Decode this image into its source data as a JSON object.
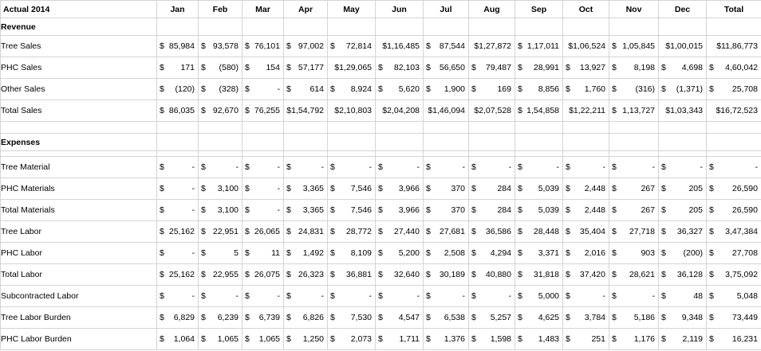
{
  "sheet": {
    "title": "Actual 2014",
    "months": [
      "Jan",
      "Feb",
      "Mar",
      "Apr",
      "May",
      "Jun",
      "Jul",
      "Aug",
      "Sep",
      "Oct",
      "Nov",
      "Dec",
      "Total"
    ],
    "revenue_header": "Revenue",
    "expenses_header": "Expenses",
    "rows": [
      {
        "kind": "section",
        "label": "Revenue"
      },
      {
        "kind": "data",
        "label": "Tree Sales",
        "cells": [
          [
            "$",
            "85,984"
          ],
          [
            "$",
            "93,578"
          ],
          [
            "$",
            "76,101"
          ],
          [
            "$",
            "97,002"
          ],
          [
            "$",
            "72,814"
          ],
          [
            "",
            "$1,16,485"
          ],
          [
            "$",
            "87,544"
          ],
          [
            "",
            "$1,27,872"
          ],
          [
            "$",
            "1,17,011"
          ],
          [
            "",
            "$1,06,524"
          ],
          [
            "$",
            "1,05,845"
          ],
          [
            "",
            "$1,00,015"
          ],
          [
            "",
            "$11,86,773"
          ]
        ]
      },
      {
        "kind": "data",
        "label": "PHC Sales",
        "cells": [
          [
            "$",
            "171"
          ],
          [
            "$",
            "(580)"
          ],
          [
            "$",
            "154"
          ],
          [
            "$",
            "57,177"
          ],
          [
            "",
            "$1,29,065"
          ],
          [
            "$",
            "82,103"
          ],
          [
            "$",
            "56,650"
          ],
          [
            "$",
            "79,487"
          ],
          [
            "$",
            "28,991"
          ],
          [
            "$",
            "13,927"
          ],
          [
            "$",
            "8,198"
          ],
          [
            "$",
            "4,698"
          ],
          [
            "$",
            "4,60,042"
          ]
        ]
      },
      {
        "kind": "data",
        "label": "Other Sales",
        "cells": [
          [
            "$",
            "(120)"
          ],
          [
            "$",
            "(328)"
          ],
          [
            "$",
            "-"
          ],
          [
            "$",
            "614"
          ],
          [
            "$",
            "8,924"
          ],
          [
            "$",
            "5,620"
          ],
          [
            "$",
            "1,900"
          ],
          [
            "$",
            "169"
          ],
          [
            "$",
            "8,856"
          ],
          [
            "$",
            "1,760"
          ],
          [
            "$",
            "(316)"
          ],
          [
            "$",
            "(1,371)"
          ],
          [
            "$",
            "25,708"
          ]
        ]
      },
      {
        "kind": "data",
        "label": "Total Sales",
        "cells": [
          [
            "$",
            "86,035"
          ],
          [
            "$",
            "92,670"
          ],
          [
            "$",
            "76,255"
          ],
          [
            "",
            "$1,54,792"
          ],
          [
            "",
            "$2,10,803"
          ],
          [
            "",
            "$2,04,208"
          ],
          [
            "",
            "$1,46,094"
          ],
          [
            "",
            "$2,07,528"
          ],
          [
            "$",
            "1,54,858"
          ],
          [
            "",
            "$1,22,211"
          ],
          [
            "$",
            "1,13,727"
          ],
          [
            "",
            "$1,03,343"
          ],
          [
            "",
            "$16,72,523"
          ]
        ]
      },
      {
        "kind": "spacer"
      },
      {
        "kind": "section",
        "label": "Expenses"
      },
      {
        "kind": "gap"
      },
      {
        "kind": "data",
        "label": "Tree Material",
        "cells": [
          [
            "$",
            "-"
          ],
          [
            "$",
            "-"
          ],
          [
            "$",
            "-"
          ],
          [
            "$",
            "-"
          ],
          [
            "$",
            "-"
          ],
          [
            "$",
            "-"
          ],
          [
            "$",
            "-"
          ],
          [
            "$",
            "-"
          ],
          [
            "$",
            "-"
          ],
          [
            "$",
            "-"
          ],
          [
            "$",
            "-"
          ],
          [
            "$",
            "-"
          ],
          [
            "$",
            "-"
          ]
        ]
      },
      {
        "kind": "data",
        "label": "PHC Materials",
        "cells": [
          [
            "$",
            "-"
          ],
          [
            "$",
            "3,100"
          ],
          [
            "$",
            "-"
          ],
          [
            "$",
            "3,365"
          ],
          [
            "$",
            "7,546"
          ],
          [
            "$",
            "3,966"
          ],
          [
            "$",
            "370"
          ],
          [
            "$",
            "284"
          ],
          [
            "$",
            "5,039"
          ],
          [
            "$",
            "2,448"
          ],
          [
            "$",
            "267"
          ],
          [
            "$",
            "205"
          ],
          [
            "$",
            "26,590"
          ]
        ]
      },
      {
        "kind": "data",
        "label": "Total Materials",
        "cells": [
          [
            "$",
            "-"
          ],
          [
            "$",
            "3,100"
          ],
          [
            "$",
            "-"
          ],
          [
            "$",
            "3,365"
          ],
          [
            "$",
            "7,546"
          ],
          [
            "$",
            "3,966"
          ],
          [
            "$",
            "370"
          ],
          [
            "$",
            "284"
          ],
          [
            "$",
            "5,039"
          ],
          [
            "$",
            "2,448"
          ],
          [
            "$",
            "267"
          ],
          [
            "$",
            "205"
          ],
          [
            "$",
            "26,590"
          ]
        ]
      },
      {
        "kind": "data",
        "label": "Tree Labor",
        "cells": [
          [
            "$",
            "25,162"
          ],
          [
            "$",
            "22,951"
          ],
          [
            "$",
            "26,065"
          ],
          [
            "$",
            "24,831"
          ],
          [
            "$",
            "28,772"
          ],
          [
            "$",
            "27,440"
          ],
          [
            "$",
            "27,681"
          ],
          [
            "$",
            "36,586"
          ],
          [
            "$",
            "28,448"
          ],
          [
            "$",
            "35,404"
          ],
          [
            "$",
            "27,718"
          ],
          [
            "$",
            "36,327"
          ],
          [
            "$",
            "3,47,384"
          ]
        ]
      },
      {
        "kind": "data",
        "label": "PHC Labor",
        "cells": [
          [
            "$",
            "-"
          ],
          [
            "$",
            "5"
          ],
          [
            "$",
            "11"
          ],
          [
            "$",
            "1,492"
          ],
          [
            "$",
            "8,109"
          ],
          [
            "$",
            "5,200"
          ],
          [
            "$",
            "2,508"
          ],
          [
            "$",
            "4,294"
          ],
          [
            "$",
            "3,371"
          ],
          [
            "$",
            "2,016"
          ],
          [
            "$",
            "903"
          ],
          [
            "$",
            "(200)"
          ],
          [
            "$",
            "27,708"
          ]
        ]
      },
      {
        "kind": "data",
        "label": "Total Labor",
        "cells": [
          [
            "$",
            "25,162"
          ],
          [
            "$",
            "22,955"
          ],
          [
            "$",
            "26,075"
          ],
          [
            "$",
            "26,323"
          ],
          [
            "$",
            "36,881"
          ],
          [
            "$",
            "32,640"
          ],
          [
            "$",
            "30,189"
          ],
          [
            "$",
            "40,880"
          ],
          [
            "$",
            "31,818"
          ],
          [
            "$",
            "37,420"
          ],
          [
            "$",
            "28,621"
          ],
          [
            "$",
            "36,128"
          ],
          [
            "$",
            "3,75,092"
          ]
        ]
      },
      {
        "kind": "data",
        "label": "Subcontracted  Labor",
        "cells": [
          [
            "$",
            "-"
          ],
          [
            "$",
            "-"
          ],
          [
            "$",
            "-"
          ],
          [
            "$",
            "-"
          ],
          [
            "$",
            "-"
          ],
          [
            "$",
            "-"
          ],
          [
            "$",
            "-"
          ],
          [
            "$",
            "-"
          ],
          [
            "$",
            "5,000"
          ],
          [
            "$",
            "-"
          ],
          [
            "$",
            "-"
          ],
          [
            "$",
            "48"
          ],
          [
            "$",
            "5,048"
          ]
        ]
      },
      {
        "kind": "data",
        "label": "Tree Labor Burden",
        "cells": [
          [
            "$",
            "6,829"
          ],
          [
            "$",
            "6,239"
          ],
          [
            "$",
            "6,739"
          ],
          [
            "$",
            "6,826"
          ],
          [
            "$",
            "7,530"
          ],
          [
            "$",
            "4,547"
          ],
          [
            "$",
            "6,538"
          ],
          [
            "$",
            "5,257"
          ],
          [
            "$",
            "4,625"
          ],
          [
            "$",
            "3,784"
          ],
          [
            "$",
            "5,186"
          ],
          [
            "$",
            "9,348"
          ],
          [
            "$",
            "73,449"
          ]
        ]
      },
      {
        "kind": "data",
        "label": "PHC Labor Burden",
        "cells": [
          [
            "$",
            "1,064"
          ],
          [
            "$",
            "1,065"
          ],
          [
            "$",
            "1,065"
          ],
          [
            "$",
            "1,250"
          ],
          [
            "$",
            "2,073"
          ],
          [
            "$",
            "1,711"
          ],
          [
            "$",
            "1,376"
          ],
          [
            "$",
            "1,598"
          ],
          [
            "$",
            "1,483"
          ],
          [
            "$",
            "251"
          ],
          [
            "$",
            "1,176"
          ],
          [
            "$",
            "2,119"
          ],
          [
            "$",
            "16,231"
          ]
        ]
      }
    ]
  }
}
